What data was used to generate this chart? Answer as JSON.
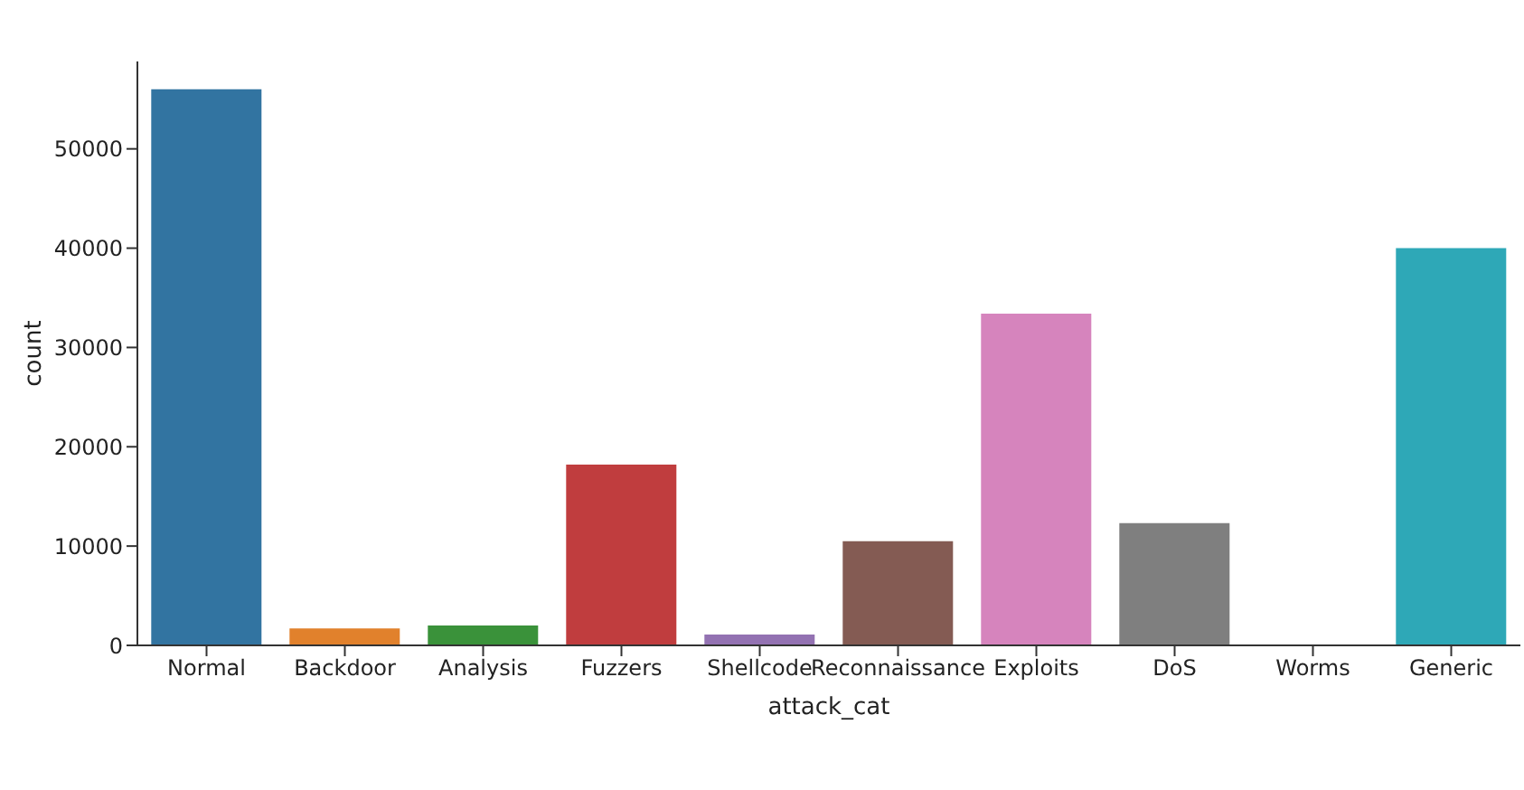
{
  "chart_data": {
    "type": "bar",
    "xlabel": "attack_cat",
    "ylabel": "count",
    "categories": [
      "Normal",
      "Backdoor",
      "Analysis",
      "Fuzzers",
      "Shellcode",
      "Reconnaissance",
      "Exploits",
      "DoS",
      "Worms",
      "Generic"
    ],
    "values": [
      56000,
      1700,
      2000,
      18200,
      1100,
      10500,
      33400,
      12300,
      100,
      40000
    ],
    "colors": [
      "#3274a1",
      "#e1812c",
      "#3a923a",
      "#c03d3e",
      "#9372b2",
      "#845b53",
      "#d684bd",
      "#7f7f7f",
      "#a9aa35",
      "#2ea8b7"
    ],
    "ylim": [
      0,
      58800
    ],
    "yticks": [
      0,
      10000,
      20000,
      30000,
      40000,
      50000
    ],
    "grid": false,
    "legend": false
  }
}
